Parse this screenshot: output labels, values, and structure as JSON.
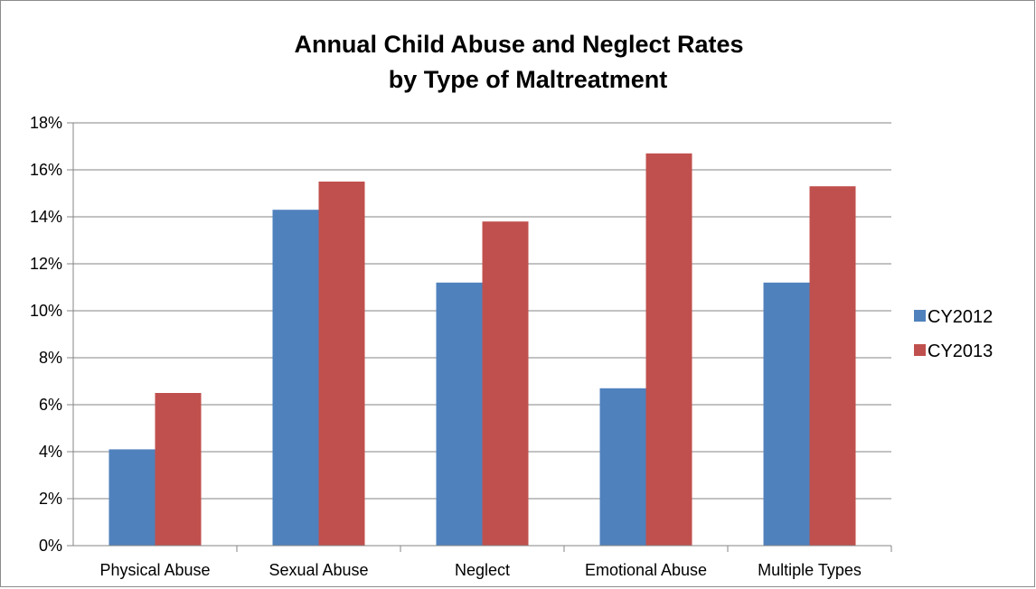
{
  "chart_data": {
    "type": "bar",
    "title": [
      "Annual Child Abuse and Neglect Rates",
      "by Type of Maltreatment"
    ],
    "categories": [
      "Physical Abuse",
      "Sexual Abuse",
      "Neglect",
      "Emotional Abuse",
      "Multiple Types"
    ],
    "series": [
      {
        "name": "CY2012",
        "color": "#4f81bd",
        "values": [
          4.1,
          14.3,
          11.2,
          6.7,
          11.2
        ]
      },
      {
        "name": "CY2013",
        "color": "#c0504d",
        "values": [
          6.5,
          15.5,
          13.8,
          16.7,
          15.3
        ]
      }
    ],
    "y_ticks": [
      "0%",
      "2%",
      "4%",
      "6%",
      "8%",
      "10%",
      "12%",
      "14%",
      "16%",
      "18%"
    ],
    "ylim": [
      0,
      18
    ],
    "y_unit": "%",
    "grid": true,
    "legend_position": "right",
    "xlabel": "",
    "ylabel": ""
  }
}
